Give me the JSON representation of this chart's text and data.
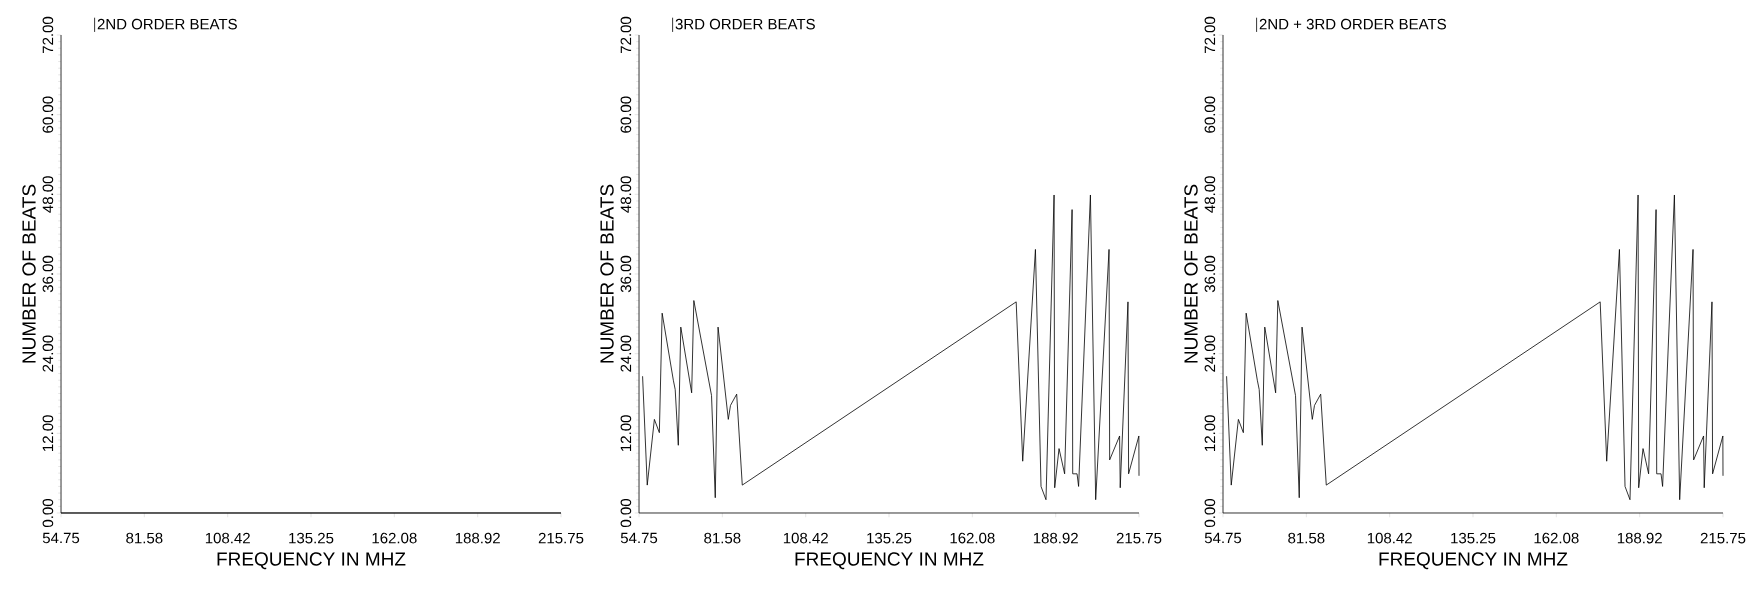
{
  "chart_data": [
    {
      "type": "line",
      "xlabel": "FREQUENCY IN MHZ",
      "ylabel": "NUMBER OF BEATS",
      "legend": "top left",
      "xlim": [
        54.75,
        215.75
      ],
      "ylim": [
        0,
        72
      ],
      "xticks": [
        54.75,
        81.58,
        108.42,
        135.25,
        162.08,
        188.92,
        215.75
      ],
      "yticks": [
        {
          "value": 0,
          "label": "0.00"
        },
        {
          "value": 12,
          "label": "12.00"
        },
        {
          "value": 24,
          "label": "24.00"
        },
        {
          "value": 36,
          "label": "36.00"
        },
        {
          "value": 48,
          "label": "48.00"
        },
        {
          "value": 60,
          "label": "60.00"
        },
        {
          "value": 72,
          "label": "72.00"
        }
      ],
      "series": [
        {
          "name": "2ND ORDER BEATS",
          "color": "#000000",
          "x": [
            54.75,
            215.75
          ],
          "values": [
            0,
            0
          ]
        }
      ]
    },
    {
      "type": "line",
      "xlabel": "FREQUENCY IN MHZ",
      "ylabel": "NUMBER OF BEATS",
      "legend": "top left",
      "xlim": [
        54.75,
        215.75
      ],
      "ylim": [
        0,
        72
      ],
      "xticks": [
        54.75,
        81.58,
        108.42,
        135.25,
        162.08,
        188.92,
        215.75
      ],
      "yticks": [
        {
          "value": 0,
          "label": "0.00"
        },
        {
          "value": 12,
          "label": "12.00"
        },
        {
          "value": 24,
          "label": "24.00"
        },
        {
          "value": 36,
          "label": "36.00"
        },
        {
          "value": 48,
          "label": "48.00"
        },
        {
          "value": 60,
          "label": "60.00"
        },
        {
          "value": 72,
          "label": "72.00"
        }
      ],
      "series": [
        {
          "name": "3RD ORDER BEATS",
          "color": "#000000",
          "x": [
            55.9,
            57.4,
            59.7,
            61.3,
            62.2,
            65.8,
            66.4,
            67.4,
            68.2,
            71.7,
            72.4,
            78.1,
            79.3,
            80.2,
            83.5,
            84.2,
            86.2,
            88.0,
            176.2,
            178.3,
            182.4,
            184.2,
            185.8,
            188.4,
            188.6,
            190.0,
            191.8,
            194.2,
            194.4,
            195.8,
            196.3,
            200.1,
            201.8,
            206.1,
            206.3,
            209.5,
            209.7,
            212.2,
            212.4,
            215.7,
            215.75
          ],
          "values": [
            20.6,
            4.2,
            14.1,
            12.1,
            30.1,
            20.0,
            18.6,
            10.2,
            28.0,
            18.1,
            32.0,
            17.7,
            2.3,
            28.0,
            14.1,
            16.2,
            17.9,
            4.2,
            31.8,
            7.8,
            39.7,
            4.0,
            2.0,
            47.9,
            3.8,
            9.7,
            5.9,
            45.7,
            5.9,
            5.9,
            4.0,
            47.9,
            2.0,
            39.7,
            8.0,
            11.6,
            3.8,
            31.8,
            5.9,
            11.6,
            5.6
          ]
        }
      ]
    },
    {
      "type": "line",
      "xlabel": "FREQUENCY IN MHZ",
      "ylabel": "NUMBER OF BEATS",
      "legend": "top left",
      "xlim": [
        54.75,
        215.75
      ],
      "ylim": [
        0,
        72
      ],
      "xticks": [
        54.75,
        81.58,
        108.42,
        135.25,
        162.08,
        188.92,
        215.75
      ],
      "yticks": [
        {
          "value": 0,
          "label": "0.00"
        },
        {
          "value": 12,
          "label": "12.00"
        },
        {
          "value": 24,
          "label": "24.00"
        },
        {
          "value": 36,
          "label": "36.00"
        },
        {
          "value": 48,
          "label": "48.00"
        },
        {
          "value": 60,
          "label": "60.00"
        },
        {
          "value": 72,
          "label": "72.00"
        }
      ],
      "series": [
        {
          "name": "2ND + 3RD ORDER BEATS",
          "color": "#000000",
          "x": [
            55.9,
            57.4,
            59.7,
            61.3,
            62.2,
            65.8,
            66.4,
            67.4,
            68.2,
            71.7,
            72.4,
            78.1,
            79.3,
            80.2,
            83.5,
            84.2,
            86.2,
            88.0,
            176.2,
            178.3,
            182.4,
            184.2,
            185.8,
            188.4,
            188.6,
            190.0,
            191.8,
            194.2,
            194.4,
            195.8,
            196.3,
            200.1,
            201.8,
            206.1,
            206.3,
            209.5,
            209.7,
            212.2,
            212.4,
            215.7,
            215.75
          ],
          "values": [
            20.6,
            4.2,
            14.1,
            12.1,
            30.1,
            20.0,
            18.6,
            10.2,
            28.0,
            18.1,
            32.0,
            17.7,
            2.3,
            28.0,
            14.1,
            16.2,
            17.9,
            4.2,
            31.8,
            7.8,
            39.7,
            4.0,
            2.0,
            47.9,
            3.8,
            9.7,
            5.9,
            45.7,
            5.9,
            5.9,
            4.0,
            47.9,
            2.0,
            39.7,
            8.0,
            11.6,
            3.8,
            31.8,
            5.9,
            11.6,
            5.6
          ]
        }
      ]
    }
  ]
}
